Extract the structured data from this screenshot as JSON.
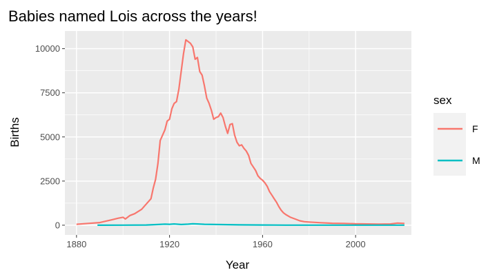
{
  "chart_data": {
    "type": "line",
    "title": "Babies named Lois across the years!",
    "xlabel": "Year",
    "ylabel": "Births",
    "xlim": [
      1875,
      2024
    ],
    "ylim": [
      -550,
      11000
    ],
    "x_ticks": [
      1880,
      1920,
      1960,
      2000
    ],
    "y_ticks": [
      0,
      2500,
      5000,
      7500,
      10000
    ],
    "x_tick_labels": [
      "1880",
      "1920",
      "1960",
      "2000"
    ],
    "y_tick_labels": [
      "0",
      "2500",
      "5000",
      "7500",
      "10000"
    ],
    "grid": true,
    "legend": {
      "title": "sex",
      "placement": "right"
    },
    "series": [
      {
        "name": "F",
        "color": "#F8766D",
        "x": [
          1880,
          1885,
          1890,
          1895,
          1898,
          1900,
          1901,
          1903,
          1905,
          1908,
          1910,
          1912,
          1913,
          1914,
          1915,
          1916,
          1918,
          1919,
          1920,
          1921,
          1922,
          1923,
          1924,
          1926,
          1927,
          1928,
          1929,
          1930,
          1931,
          1932,
          1933,
          1934,
          1935,
          1936,
          1937,
          1938,
          1939,
          1940,
          1941,
          1942,
          1943,
          1944,
          1945,
          1946,
          1947,
          1948,
          1949,
          1950,
          1951,
          1952,
          1953,
          1954,
          1955,
          1956,
          1957,
          1958,
          1959,
          1960,
          1961,
          1962,
          1963,
          1964,
          1965,
          1966,
          1967,
          1968,
          1969,
          1970,
          1972,
          1974,
          1976,
          1978,
          1980,
          1985,
          1990,
          1995,
          2000,
          2005,
          2010,
          2015,
          2018,
          2021
        ],
        "y": [
          50,
          100,
          150,
          300,
          400,
          450,
          350,
          550,
          650,
          900,
          1200,
          1500,
          2100,
          2600,
          3500,
          4800,
          5400,
          5900,
          6000,
          6600,
          6900,
          7000,
          7700,
          9700,
          10500,
          10400,
          10300,
          10100,
          9400,
          9500,
          8700,
          8500,
          7900,
          7200,
          6900,
          6500,
          6000,
          6100,
          6150,
          6350,
          6100,
          5600,
          5200,
          5700,
          5750,
          5100,
          4700,
          4500,
          4550,
          4350,
          4200,
          3950,
          3500,
          3300,
          3100,
          2800,
          2650,
          2550,
          2400,
          2200,
          1900,
          1700,
          1500,
          1300,
          1050,
          850,
          700,
          600,
          450,
          350,
          250,
          200,
          180,
          140,
          110,
          100,
          80,
          70,
          60,
          70,
          120,
          100
        ]
      },
      {
        "name": "M",
        "color": "#00BFC4",
        "x": [
          1889,
          1900,
          1910,
          1915,
          1918,
          1920,
          1922,
          1925,
          1928,
          1930,
          1932,
          1935,
          1940,
          1945,
          1950,
          1955,
          1960,
          1965,
          1970,
          1980,
          1990,
          2000,
          2010,
          2021
        ],
        "y": [
          0,
          5,
          10,
          40,
          60,
          50,
          70,
          40,
          60,
          80,
          70,
          50,
          40,
          30,
          20,
          15,
          10,
          8,
          5,
          5,
          5,
          5,
          5,
          5
        ]
      }
    ]
  }
}
